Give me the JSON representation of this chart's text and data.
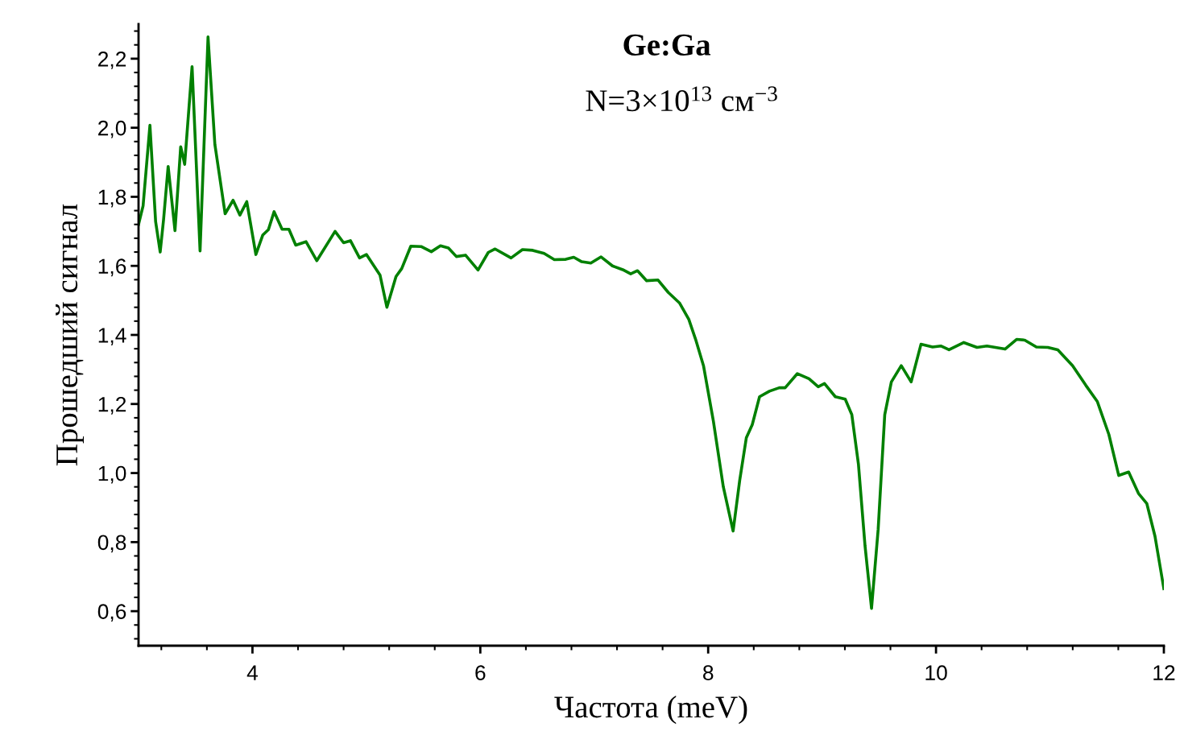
{
  "chart_data": {
    "type": "line",
    "title": "Ge:Ga",
    "subtitle": "N=3×10$^{13}$ см$^{−3}$",
    "xlabel": "Частота (meV)",
    "ylabel": "Прошедший сигнал",
    "xlim": [
      3.0,
      12.0
    ],
    "xticks": [
      4,
      6,
      8,
      10,
      12
    ],
    "ylim": [
      0.5,
      2.3
    ],
    "yticks": [
      {
        "value": 0.6,
        "label": "0,6"
      },
      {
        "value": 0.8,
        "label": "0,8"
      },
      {
        "value": 1.0,
        "label": "1,0"
      },
      {
        "value": 1.2,
        "label": "1,2"
      },
      {
        "value": 1.4,
        "label": "1,4"
      },
      {
        "value": 1.6,
        "label": "1,6"
      },
      {
        "value": 1.8,
        "label": "1,8"
      },
      {
        "value": 2.0,
        "label": "2,0"
      },
      {
        "value": 2.2,
        "label": "2,2"
      }
    ],
    "grid": false,
    "legend": false,
    "marker": "none",
    "line_style": "solid",
    "series": [
      {
        "color": "#008000",
        "x": [
          3.0,
          3.04,
          3.1,
          3.15,
          3.19,
          3.22,
          3.26,
          3.32,
          3.37,
          3.405,
          3.47,
          3.54,
          3.61,
          3.67,
          3.76,
          3.83,
          3.89,
          3.95,
          4.03,
          4.09,
          4.14,
          4.19,
          4.26,
          4.32,
          4.38,
          4.47,
          4.565,
          4.725,
          4.8,
          4.86,
          4.94,
          5.0,
          5.12,
          5.18,
          5.26,
          5.31,
          5.39,
          5.48,
          5.57,
          5.65,
          5.72,
          5.79,
          5.87,
          5.98,
          6.07,
          6.13,
          6.27,
          6.37,
          6.46,
          6.56,
          6.65,
          6.75,
          6.82,
          6.89,
          6.97,
          7.06,
          7.16,
          7.25,
          7.32,
          7.38,
          7.46,
          7.56,
          7.65,
          7.75,
          7.83,
          7.89,
          7.959,
          8.046,
          8.133,
          8.219,
          8.277,
          8.335,
          8.387,
          8.451,
          8.538,
          8.624,
          8.676,
          8.783,
          8.885,
          8.966,
          9.021,
          9.116,
          9.203,
          9.261,
          9.319,
          9.377,
          9.434,
          9.492,
          9.55,
          9.608,
          9.695,
          9.782,
          9.868,
          9.97,
          10.042,
          10.114,
          10.244,
          10.36,
          10.447,
          10.606,
          10.707,
          10.779,
          10.881,
          10.982,
          11.069,
          11.199,
          11.315,
          11.416,
          11.517,
          11.604,
          11.691,
          11.777,
          11.85,
          11.922,
          12.0
        ],
        "values": [
          1.72,
          1.774,
          2.007,
          1.728,
          1.64,
          1.735,
          1.888,
          1.702,
          1.945,
          1.894,
          2.177,
          1.643,
          2.263,
          1.952,
          1.751,
          1.79,
          1.747,
          1.786,
          1.633,
          1.689,
          1.705,
          1.757,
          1.706,
          1.706,
          1.66,
          1.67,
          1.615,
          1.7,
          1.667,
          1.673,
          1.623,
          1.633,
          1.573,
          1.48,
          1.569,
          1.592,
          1.657,
          1.656,
          1.641,
          1.658,
          1.652,
          1.627,
          1.631,
          1.588,
          1.639,
          1.649,
          1.623,
          1.647,
          1.645,
          1.636,
          1.618,
          1.619,
          1.625,
          1.612,
          1.608,
          1.626,
          1.6,
          1.589,
          1.577,
          1.586,
          1.557,
          1.559,
          1.523,
          1.492,
          1.445,
          1.387,
          1.311,
          1.15,
          0.96,
          0.832,
          0.979,
          1.102,
          1.14,
          1.221,
          1.237,
          1.247,
          1.247,
          1.288,
          1.273,
          1.25,
          1.259,
          1.221,
          1.214,
          1.169,
          1.026,
          0.789,
          0.608,
          0.836,
          1.169,
          1.264,
          1.311,
          1.264,
          1.373,
          1.365,
          1.368,
          1.357,
          1.378,
          1.364,
          1.368,
          1.359,
          1.387,
          1.385,
          1.365,
          1.364,
          1.357,
          1.311,
          1.254,
          1.207,
          1.112,
          0.993,
          1.003,
          0.941,
          0.912,
          0.817,
          0.665
        ]
      }
    ]
  }
}
